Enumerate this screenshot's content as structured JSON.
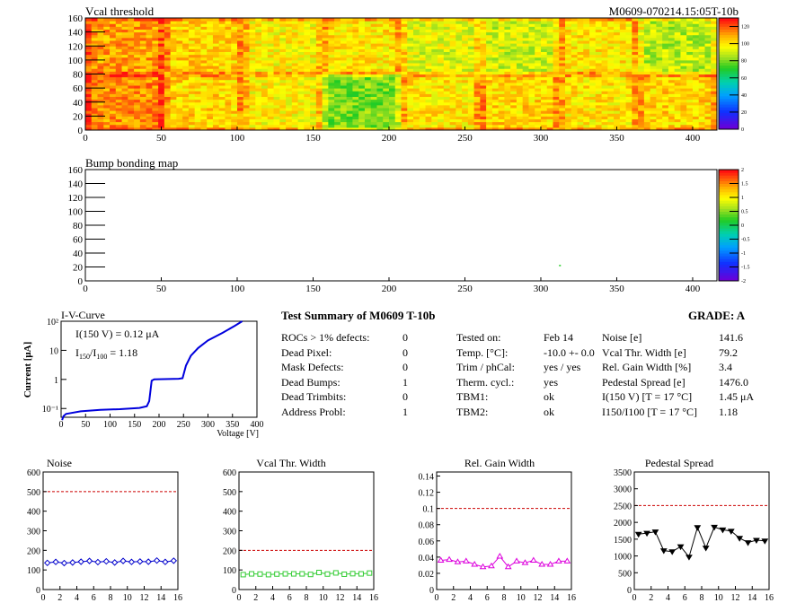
{
  "heatmap1": {
    "title": "Vcal threshold",
    "module_id": "M0609-070214.15:05T-10b",
    "x_ticks": [
      0,
      50,
      100,
      150,
      200,
      250,
      300,
      350,
      400
    ],
    "y_ticks": [
      0,
      20,
      40,
      60,
      80,
      100,
      120,
      140,
      160
    ],
    "xlim": [
      0,
      416
    ],
    "ylim": [
      0,
      160
    ],
    "palette_ticks": [
      0,
      20,
      40,
      60,
      80,
      100,
      120
    ],
    "palette_range": [
      0,
      130
    ]
  },
  "heatmap2": {
    "title": "Bump bonding map",
    "x_ticks": [
      0,
      50,
      100,
      150,
      200,
      250,
      300,
      350,
      400
    ],
    "y_ticks": [
      0,
      20,
      40,
      60,
      80,
      100,
      120,
      140,
      160
    ],
    "xlim": [
      0,
      416
    ],
    "ylim": [
      0,
      160
    ],
    "palette_ticks": [
      "-2",
      "-1.5",
      "-1",
      "-0.5",
      "0",
      "0.5",
      "1",
      "1.5",
      "2"
    ],
    "palette_range": [
      -2,
      2
    ]
  },
  "iv_curve": {
    "title": "I-V-Curve",
    "annotation1": "I(150 V) = 0.12 μA",
    "annotation2_pre": "I",
    "annotation2_sub1": "150",
    "annotation2_mid": "/I",
    "annotation2_sub2": "100",
    "annotation2_post": " =  1.18",
    "xlabel": "Voltage [V]",
    "ylabel": "Current [μA]",
    "x_ticks": [
      "0",
      "50",
      "100",
      "150",
      "200",
      "250",
      "300",
      "350",
      "400"
    ],
    "y_ticks": [
      "10⁻¹",
      "1",
      "10",
      "10²"
    ]
  },
  "summary": {
    "title": "Test Summary of M0609     T-10b",
    "grade": "GRADE:  A",
    "left_rows": [
      {
        "label": "ROCs > 1% defects:",
        "value": "0"
      },
      {
        "label": "Dead Pixel:",
        "value": "0"
      },
      {
        "label": "Mask Defects:",
        "value": "0"
      },
      {
        "label": "Dead Bumps:",
        "value": "1"
      },
      {
        "label": "Dead Trimbits:",
        "value": "0"
      },
      {
        "label": "Address Probl:",
        "value": "1"
      }
    ],
    "mid_rows": [
      {
        "label": "Tested on:",
        "value": "Feb 14"
      },
      {
        "label": "Temp. [°C]:",
        "value": "-10.0 +- 0.0"
      },
      {
        "label": "Trim / phCal:",
        "value": "yes / yes"
      },
      {
        "label": "Therm. cycl.:",
        "value": "yes"
      },
      {
        "label": "TBM1:",
        "value": "ok"
      },
      {
        "label": "TBM2:",
        "value": "ok"
      }
    ],
    "right_rows": [
      {
        "label": "Noise [e]",
        "value": "141.6"
      },
      {
        "label": "Vcal Thr. Width [e]",
        "value": "79.2"
      },
      {
        "label": "Rel. Gain Width [%]",
        "value": "3.4"
      },
      {
        "label": "Pedestal Spread [e]",
        "value": "1476.0"
      },
      {
        "label": "I(150 V)  [T = 17 °C]",
        "value": "1.45 μA"
      },
      {
        "label": "I150/I100   [T = 17 °C]",
        "value": "1.18"
      }
    ]
  },
  "chart_data": [
    {
      "type": "line",
      "title": "Noise",
      "x": [
        0,
        1,
        2,
        3,
        4,
        5,
        6,
        7,
        8,
        9,
        10,
        11,
        12,
        13,
        14,
        15
      ],
      "values": [
        136,
        141,
        135,
        138,
        142,
        146,
        140,
        144,
        138,
        146,
        141,
        143,
        142,
        148,
        141,
        147
      ],
      "ylim": [
        0,
        600
      ],
      "xlim": [
        0,
        16
      ],
      "y_ticks": [
        0,
        100,
        200,
        300,
        400,
        500,
        600
      ],
      "x_ticks": [
        0,
        2,
        4,
        6,
        8,
        10,
        12,
        14,
        16
      ],
      "threshold": 500,
      "color": "#0000cc",
      "marker": "diamond"
    },
    {
      "type": "line",
      "title": "Vcal Thr. Width",
      "x": [
        0,
        1,
        2,
        3,
        4,
        5,
        6,
        7,
        8,
        9,
        10,
        11,
        12,
        13,
        14,
        15
      ],
      "values": [
        76,
        80,
        79,
        76,
        79,
        80,
        80,
        80,
        77,
        87,
        79,
        85,
        78,
        81,
        80,
        84
      ],
      "ylim": [
        0,
        600
      ],
      "xlim": [
        0,
        16
      ],
      "y_ticks": [
        0,
        100,
        200,
        300,
        400,
        500,
        600
      ],
      "x_ticks": [
        0,
        2,
        4,
        6,
        8,
        10,
        12,
        14,
        16
      ],
      "threshold": 200,
      "color": "#33cc33",
      "marker": "square"
    },
    {
      "type": "line",
      "title": "Rel. Gain Width",
      "x": [
        0,
        1,
        2,
        3,
        4,
        5,
        6,
        7,
        8,
        9,
        10,
        11,
        12,
        13,
        14,
        15
      ],
      "values": [
        0.036,
        0.037,
        0.034,
        0.035,
        0.031,
        0.028,
        0.029,
        0.041,
        0.028,
        0.035,
        0.033,
        0.036,
        0.031,
        0.031,
        0.035,
        0.035
      ],
      "ylim": [
        0,
        0.145
      ],
      "xlim": [
        0,
        16
      ],
      "y_ticks": [
        0,
        0.02,
        0.04,
        0.06,
        0.08,
        0.1,
        0.12,
        0.14
      ],
      "x_ticks": [
        0,
        2,
        4,
        6,
        8,
        10,
        12,
        14,
        16
      ],
      "threshold": 0.1,
      "color": "#dd00dd",
      "marker": "triangle"
    },
    {
      "type": "line",
      "title": "Pedestal Spread",
      "x": [
        0,
        1,
        2,
        3,
        4,
        5,
        6,
        7,
        8,
        9,
        10,
        11,
        12,
        13,
        14,
        15
      ],
      "values": [
        1650,
        1680,
        1720,
        1160,
        1130,
        1280,
        970,
        1850,
        1240,
        1860,
        1780,
        1740,
        1530,
        1400,
        1470,
        1450
      ],
      "ylim": [
        0,
        3500
      ],
      "xlim": [
        0,
        16
      ],
      "y_ticks": [
        0,
        500,
        1000,
        1500,
        2000,
        2500,
        3000,
        3500
      ],
      "x_ticks": [
        0,
        2,
        4,
        6,
        8,
        10,
        12,
        14,
        16
      ],
      "threshold": 2500,
      "color": "#000000",
      "marker": "triangle-down"
    }
  ]
}
